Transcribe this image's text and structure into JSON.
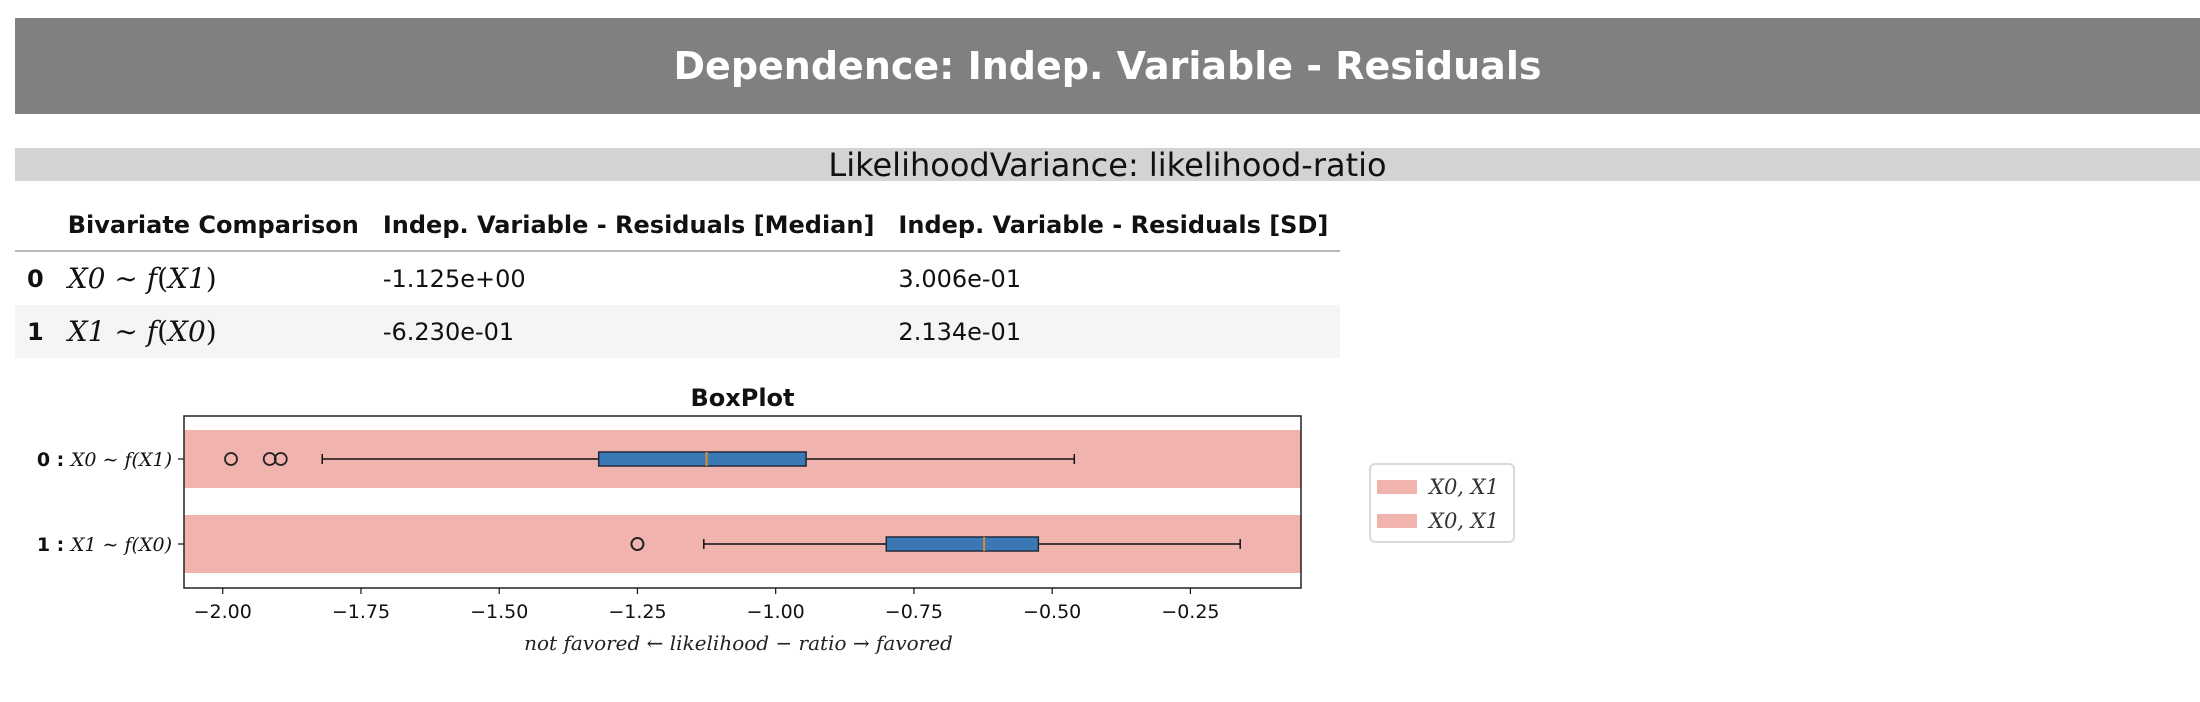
{
  "header": {
    "title": "Dependence: Indep. Variable - Residuals"
  },
  "subheader": {
    "title": "LikelihoodVariance: likelihood-ratio"
  },
  "table": {
    "columns": [
      "",
      "Bivariate Comparison",
      "Indep. Variable - Residuals [Median]",
      "Indep. Variable - Residuals [SD]"
    ],
    "rows": [
      {
        "index": "0",
        "comparison_lhs": "X0",
        "comparison_fn": "f",
        "comparison_arg": "X1",
        "median": "-1.125e+00",
        "sd": "3.006e-01"
      },
      {
        "index": "1",
        "comparison_lhs": "X1",
        "comparison_fn": "f",
        "comparison_arg": "X0",
        "median": "-6.230e-01",
        "sd": "2.134e-01"
      }
    ]
  },
  "chart_data": {
    "type": "box",
    "title": "BoxPlot",
    "xlabel": "not favored ← likelihood − ratio → favored",
    "xlim": [
      -2.07,
      -0.05
    ],
    "xticks": [
      -2.0,
      -1.75,
      -1.5,
      -1.25,
      -1.0,
      -0.75,
      -0.5,
      -0.25
    ],
    "xtick_labels": [
      "−2.00",
      "−1.75",
      "−1.50",
      "−1.25",
      "−1.00",
      "−0.75",
      "−0.50",
      "−0.25"
    ],
    "categories": [
      {
        "label_index": "0 :",
        "label": "X0 ∼ f(X1)"
      },
      {
        "label_index": "1 :",
        "label": "X1 ∼ f(X0)"
      }
    ],
    "boxes": [
      {
        "whisker_low": -1.82,
        "q1": -1.32,
        "median": -1.125,
        "q3": -0.945,
        "whisker_high": -0.46,
        "outliers": [
          -1.985,
          -1.915,
          -1.895
        ]
      },
      {
        "whisker_low": -1.13,
        "q1": -0.8,
        "median": -0.623,
        "q3": -0.525,
        "whisker_high": -0.16,
        "outliers": [
          -1.25,
          -1.25
        ]
      }
    ],
    "legend": {
      "placement": "right",
      "entries": [
        "X0,  X1",
        "X0,  X1"
      ]
    },
    "colors": {
      "band": "#f0b3ad",
      "box_fill": "#3b78b6",
      "box_edge": "#1f2b3a",
      "median": "#e08a30"
    }
  }
}
